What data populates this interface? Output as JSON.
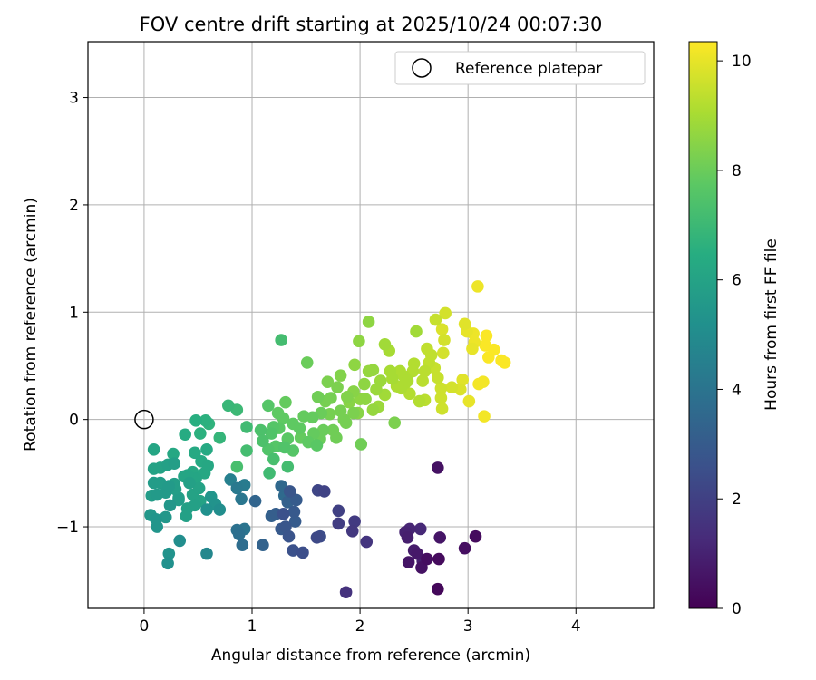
{
  "chart_data": {
    "type": "scatter",
    "title": "FOV centre drift starting at 2025/10/24 00:07:30",
    "xlabel": "Angular distance from reference (arcmin)",
    "ylabel": "Rotation from reference (arcmin)",
    "xlim": [
      -0.52,
      4.72
    ],
    "ylim": [
      -1.76,
      3.52
    ],
    "xticks": [
      "0",
      "1",
      "2",
      "3",
      "4"
    ],
    "yticks": [
      "−1",
      "0",
      "1",
      "2",
      "3"
    ],
    "xtick_values": [
      0,
      1,
      2,
      3,
      4
    ],
    "ytick_values": [
      -1,
      0,
      1,
      2,
      3
    ],
    "grid": true,
    "legend": {
      "position": "top-right",
      "label": "Reference platepar"
    },
    "reference": {
      "x": 0,
      "y": 0
    },
    "colorbar": {
      "label": "Hours from first FF file",
      "colormap": "viridis",
      "range": [
        0,
        10.35
      ],
      "ticks": [
        "0",
        "2",
        "4",
        "6",
        "8",
        "10"
      ],
      "tick_values": [
        0,
        2,
        4,
        6,
        8,
        10
      ]
    },
    "points": [
      {
        "x": 2.72,
        "y": -1.58,
        "h": 0.2
      },
      {
        "x": 2.73,
        "y": -1.3,
        "h": 0.3
      },
      {
        "x": 2.62,
        "y": -1.3,
        "h": 0.4
      },
      {
        "x": 2.57,
        "y": -1.38,
        "h": 0.5
      },
      {
        "x": 2.45,
        "y": -1.33,
        "h": 0.6
      },
      {
        "x": 2.53,
        "y": -1.25,
        "h": 0.7
      },
      {
        "x": 2.5,
        "y": -1.22,
        "h": 0.8
      },
      {
        "x": 2.44,
        "y": -1.1,
        "h": 0.9
      },
      {
        "x": 2.42,
        "y": -1.05,
        "h": 1.0
      },
      {
        "x": 2.46,
        "y": -1.02,
        "h": 1.1
      },
      {
        "x": 2.56,
        "y": -1.02,
        "h": 1.2
      },
      {
        "x": 2.74,
        "y": -1.1,
        "h": 0.6
      },
      {
        "x": 2.97,
        "y": -1.2,
        "h": 0.4
      },
      {
        "x": 3.07,
        "y": -1.09,
        "h": 0.3
      },
      {
        "x": 2.72,
        "y": -0.45,
        "h": 0.5
      },
      {
        "x": 2.58,
        "y": -1.32,
        "h": 0.9
      },
      {
        "x": 1.87,
        "y": -1.61,
        "h": 1.5
      },
      {
        "x": 2.06,
        "y": -1.14,
        "h": 1.6
      },
      {
        "x": 1.93,
        "y": -1.04,
        "h": 1.7
      },
      {
        "x": 1.95,
        "y": -0.95,
        "h": 1.8
      },
      {
        "x": 1.8,
        "y": -0.97,
        "h": 1.9
      },
      {
        "x": 1.8,
        "y": -0.85,
        "h": 2.0
      },
      {
        "x": 1.67,
        "y": -0.67,
        "h": 2.1
      },
      {
        "x": 1.61,
        "y": -0.66,
        "h": 2.2
      },
      {
        "x": 1.6,
        "y": -1.1,
        "h": 2.3
      },
      {
        "x": 1.63,
        "y": -1.09,
        "h": 2.4
      },
      {
        "x": 1.47,
        "y": -1.24,
        "h": 2.5
      },
      {
        "x": 1.38,
        "y": -1.22,
        "h": 2.6
      },
      {
        "x": 1.34,
        "y": -1.09,
        "h": 2.7
      },
      {
        "x": 1.31,
        "y": -1.0,
        "h": 2.8
      },
      {
        "x": 1.27,
        "y": -1.02,
        "h": 2.9
      },
      {
        "x": 1.4,
        "y": -0.95,
        "h": 3.0
      },
      {
        "x": 1.22,
        "y": -0.88,
        "h": 3.1
      },
      {
        "x": 1.18,
        "y": -0.9,
        "h": 3.2
      },
      {
        "x": 1.1,
        "y": -1.17,
        "h": 3.3
      },
      {
        "x": 1.03,
        "y": -0.76,
        "h": 3.4
      },
      {
        "x": 1.27,
        "y": -0.62,
        "h": 3.5
      },
      {
        "x": 1.3,
        "y": -0.71,
        "h": 3.6
      },
      {
        "x": 1.35,
        "y": -0.67,
        "h": 2.8
      },
      {
        "x": 1.41,
        "y": -0.75,
        "h": 3.0
      },
      {
        "x": 1.33,
        "y": -0.77,
        "h": 3.2
      },
      {
        "x": 1.29,
        "y": -0.88,
        "h": 2.6
      },
      {
        "x": 1.39,
        "y": -0.86,
        "h": 2.9
      },
      {
        "x": 0.91,
        "y": -1.17,
        "h": 3.7
      },
      {
        "x": 0.88,
        "y": -1.07,
        "h": 3.8
      },
      {
        "x": 0.86,
        "y": -1.03,
        "h": 3.9
      },
      {
        "x": 0.93,
        "y": -1.02,
        "h": 4.0
      },
      {
        "x": 0.9,
        "y": -0.74,
        "h": 4.1
      },
      {
        "x": 0.86,
        "y": -0.64,
        "h": 4.2
      },
      {
        "x": 0.93,
        "y": -0.61,
        "h": 4.3
      },
      {
        "x": 0.8,
        "y": -0.56,
        "h": 4.5
      },
      {
        "x": 0.58,
        "y": -1.25,
        "h": 4.8
      },
      {
        "x": 0.33,
        "y": -1.13,
        "h": 5.1
      },
      {
        "x": 0.22,
        "y": -1.34,
        "h": 5.2
      },
      {
        "x": 0.23,
        "y": -1.25,
        "h": 5.3
      },
      {
        "x": 0.12,
        "y": -1.0,
        "h": 5.4
      },
      {
        "x": 0.11,
        "y": -0.93,
        "h": 5.4
      },
      {
        "x": 0.06,
        "y": -0.89,
        "h": 5.5
      },
      {
        "x": 0.2,
        "y": -0.91,
        "h": 5.5
      },
      {
        "x": 0.24,
        "y": -0.8,
        "h": 5.5
      },
      {
        "x": 0.2,
        "y": -0.68,
        "h": 5.6
      },
      {
        "x": 0.12,
        "y": -0.7,
        "h": 5.6
      },
      {
        "x": 0.07,
        "y": -0.71,
        "h": 5.7
      },
      {
        "x": 0.09,
        "y": -0.59,
        "h": 5.7
      },
      {
        "x": 0.15,
        "y": -0.59,
        "h": 5.7
      },
      {
        "x": 0.28,
        "y": -0.6,
        "h": 5.8
      },
      {
        "x": 0.32,
        "y": -0.73,
        "h": 5.8
      },
      {
        "x": 0.29,
        "y": -0.65,
        "h": 5.8
      },
      {
        "x": 0.39,
        "y": -0.9,
        "h": 5.9
      },
      {
        "x": 0.4,
        "y": -0.83,
        "h": 5.9
      },
      {
        "x": 0.47,
        "y": -0.8,
        "h": 5.9
      },
      {
        "x": 0.52,
        "y": -0.76,
        "h": 6.0
      },
      {
        "x": 0.45,
        "y": -0.7,
        "h": 6.0
      },
      {
        "x": 0.51,
        "y": -0.64,
        "h": 6.0
      },
      {
        "x": 0.48,
        "y": -0.55,
        "h": 6.1
      },
      {
        "x": 0.4,
        "y": -0.52,
        "h": 6.1
      },
      {
        "x": 0.37,
        "y": -0.53,
        "h": 6.1
      },
      {
        "x": 0.45,
        "y": -0.49,
        "h": 6.2
      },
      {
        "x": 0.56,
        "y": -0.5,
        "h": 6.2
      },
      {
        "x": 0.59,
        "y": -0.43,
        "h": 6.2
      },
      {
        "x": 0.53,
        "y": -0.39,
        "h": 6.3
      },
      {
        "x": 0.47,
        "y": -0.31,
        "h": 6.3
      },
      {
        "x": 0.58,
        "y": -0.28,
        "h": 6.3
      },
      {
        "x": 0.62,
        "y": -0.72,
        "h": 5.4
      },
      {
        "x": 0.66,
        "y": -0.79,
        "h": 5.3
      },
      {
        "x": 0.58,
        "y": -0.84,
        "h": 5.2
      },
      {
        "x": 0.7,
        "y": -0.84,
        "h": 5.1
      },
      {
        "x": 0.28,
        "y": -0.41,
        "h": 5.8
      },
      {
        "x": 0.22,
        "y": -0.42,
        "h": 5.9
      },
      {
        "x": 0.15,
        "y": -0.45,
        "h": 6.0
      },
      {
        "x": 0.09,
        "y": -0.46,
        "h": 6.0
      },
      {
        "x": 0.09,
        "y": -0.28,
        "h": 6.1
      },
      {
        "x": 0.27,
        "y": -0.32,
        "h": 6.2
      },
      {
        "x": 0.38,
        "y": -0.14,
        "h": 6.4
      },
      {
        "x": 0.48,
        "y": -0.01,
        "h": 6.5
      },
      {
        "x": 0.52,
        "y": -0.13,
        "h": 6.6
      },
      {
        "x": 0.57,
        "y": -0.01,
        "h": 6.6
      },
      {
        "x": 0.6,
        "y": -0.04,
        "h": 6.7
      },
      {
        "x": 0.7,
        "y": -0.17,
        "h": 6.8
      },
      {
        "x": 0.78,
        "y": 0.13,
        "h": 6.9
      },
      {
        "x": 0.86,
        "y": 0.09,
        "h": 7.0
      },
      {
        "x": 0.95,
        "y": -0.07,
        "h": 7.1
      },
      {
        "x": 0.95,
        "y": -0.29,
        "h": 7.2
      },
      {
        "x": 0.86,
        "y": -0.44,
        "h": 7.3
      },
      {
        "x": 0.23,
        "y": -0.62,
        "h": 5.6
      },
      {
        "x": 0.32,
        "y": -0.75,
        "h": 5.7
      },
      {
        "x": 0.42,
        "y": -0.59,
        "h": 5.9
      },
      {
        "x": 1.08,
        "y": -0.1,
        "h": 7.4
      },
      {
        "x": 1.1,
        "y": -0.2,
        "h": 7.4
      },
      {
        "x": 1.15,
        "y": -0.28,
        "h": 7.5
      },
      {
        "x": 1.18,
        "y": -0.13,
        "h": 7.5
      },
      {
        "x": 1.2,
        "y": -0.07,
        "h": 7.6
      },
      {
        "x": 1.22,
        "y": -0.25,
        "h": 7.6
      },
      {
        "x": 1.16,
        "y": -0.5,
        "h": 7.1
      },
      {
        "x": 1.2,
        "y": -0.37,
        "h": 7.3
      },
      {
        "x": 1.33,
        "y": -0.44,
        "h": 7.2
      },
      {
        "x": 1.37,
        "y": -0.74,
        "h": 6.7
      },
      {
        "x": 1.38,
        "y": -0.29,
        "h": 7.6
      },
      {
        "x": 1.3,
        "y": -0.26,
        "h": 7.5
      },
      {
        "x": 1.33,
        "y": -0.18,
        "h": 7.7
      },
      {
        "x": 1.29,
        "y": 0.01,
        "h": 7.8
      },
      {
        "x": 1.25,
        "y": -0.08,
        "h": 7.7
      },
      {
        "x": 1.38,
        "y": -0.04,
        "h": 7.8
      },
      {
        "x": 1.45,
        "y": -0.17,
        "h": 7.9
      },
      {
        "x": 1.52,
        "y": -0.21,
        "h": 7.8
      },
      {
        "x": 1.57,
        "y": -0.13,
        "h": 7.9
      },
      {
        "x": 1.6,
        "y": -0.24,
        "h": 7.7
      },
      {
        "x": 1.63,
        "y": -0.18,
        "h": 8.0
      },
      {
        "x": 1.66,
        "y": -0.1,
        "h": 8.0
      },
      {
        "x": 1.75,
        "y": -0.1,
        "h": 8.1
      },
      {
        "x": 1.78,
        "y": -0.17,
        "h": 8.1
      },
      {
        "x": 1.85,
        "y": 0.0,
        "h": 8.2
      },
      {
        "x": 1.87,
        "y": -0.03,
        "h": 8.2
      },
      {
        "x": 1.94,
        "y": 0.06,
        "h": 8.3
      },
      {
        "x": 2.01,
        "y": -0.23,
        "h": 8.1
      },
      {
        "x": 1.31,
        "y": 0.16,
        "h": 7.9
      },
      {
        "x": 1.24,
        "y": 0.06,
        "h": 7.8
      },
      {
        "x": 1.15,
        "y": 0.13,
        "h": 7.6
      },
      {
        "x": 1.27,
        "y": 0.74,
        "h": 7.2
      },
      {
        "x": 1.51,
        "y": 0.53,
        "h": 8.0
      },
      {
        "x": 1.61,
        "y": 0.21,
        "h": 8.1
      },
      {
        "x": 1.68,
        "y": 0.17,
        "h": 8.2
      },
      {
        "x": 1.73,
        "y": 0.2,
        "h": 8.2
      },
      {
        "x": 1.7,
        "y": 0.35,
        "h": 8.3
      },
      {
        "x": 1.79,
        "y": 0.3,
        "h": 8.3
      },
      {
        "x": 1.82,
        "y": 0.41,
        "h": 8.4
      },
      {
        "x": 1.88,
        "y": 0.21,
        "h": 8.4
      },
      {
        "x": 1.9,
        "y": 0.16,
        "h": 8.5
      },
      {
        "x": 1.94,
        "y": 0.26,
        "h": 8.5
      },
      {
        "x": 2.0,
        "y": 0.19,
        "h": 8.6
      },
      {
        "x": 2.05,
        "y": 0.19,
        "h": 8.6
      },
      {
        "x": 2.08,
        "y": 0.45,
        "h": 8.7
      },
      {
        "x": 2.12,
        "y": 0.46,
        "h": 8.7
      },
      {
        "x": 1.99,
        "y": 0.73,
        "h": 8.6
      },
      {
        "x": 2.08,
        "y": 0.91,
        "h": 8.6
      },
      {
        "x": 1.95,
        "y": 0.51,
        "h": 8.6
      },
      {
        "x": 2.15,
        "y": 0.28,
        "h": 8.8
      },
      {
        "x": 2.19,
        "y": 0.36,
        "h": 8.8
      },
      {
        "x": 2.12,
        "y": 0.09,
        "h": 8.7
      },
      {
        "x": 2.17,
        "y": 0.12,
        "h": 8.8
      },
      {
        "x": 2.23,
        "y": 0.23,
        "h": 8.9
      },
      {
        "x": 2.23,
        "y": 0.7,
        "h": 8.9
      },
      {
        "x": 2.27,
        "y": 0.64,
        "h": 9.0
      },
      {
        "x": 2.28,
        "y": 0.45,
        "h": 9.0
      },
      {
        "x": 2.3,
        "y": 0.38,
        "h": 9.0
      },
      {
        "x": 2.34,
        "y": 0.31,
        "h": 9.1
      },
      {
        "x": 2.37,
        "y": 0.45,
        "h": 9.1
      },
      {
        "x": 2.32,
        "y": -0.03,
        "h": 8.3
      },
      {
        "x": 2.38,
        "y": 0.29,
        "h": 9.1
      },
      {
        "x": 2.42,
        "y": 0.34,
        "h": 9.1
      },
      {
        "x": 2.46,
        "y": 0.24,
        "h": 9.2
      },
      {
        "x": 2.5,
        "y": 0.52,
        "h": 9.2
      },
      {
        "x": 2.52,
        "y": 0.82,
        "h": 8.9
      },
      {
        "x": 2.55,
        "y": 0.17,
        "h": 9.2
      },
      {
        "x": 2.58,
        "y": 0.36,
        "h": 9.3
      },
      {
        "x": 2.6,
        "y": 0.18,
        "h": 9.3
      },
      {
        "x": 2.62,
        "y": 0.66,
        "h": 9.4
      },
      {
        "x": 2.64,
        "y": 0.53,
        "h": 9.4
      },
      {
        "x": 2.66,
        "y": 0.6,
        "h": 9.4
      },
      {
        "x": 2.69,
        "y": 0.48,
        "h": 9.5
      },
      {
        "x": 2.7,
        "y": 0.93,
        "h": 9.5
      },
      {
        "x": 2.72,
        "y": 0.39,
        "h": 9.5
      },
      {
        "x": 2.75,
        "y": 0.29,
        "h": 9.6
      },
      {
        "x": 2.75,
        "y": 0.2,
        "h": 9.6
      },
      {
        "x": 2.76,
        "y": 0.1,
        "h": 9.6
      },
      {
        "x": 2.77,
        "y": 0.62,
        "h": 9.7
      },
      {
        "x": 2.78,
        "y": 0.74,
        "h": 9.7
      },
      {
        "x": 2.79,
        "y": 0.99,
        "h": 9.7
      },
      {
        "x": 2.76,
        "y": 0.84,
        "h": 9.8
      },
      {
        "x": 2.93,
        "y": 0.28,
        "h": 9.8
      },
      {
        "x": 2.95,
        "y": 0.37,
        "h": 9.9
      },
      {
        "x": 2.97,
        "y": 0.89,
        "h": 9.9
      },
      {
        "x": 2.99,
        "y": 0.82,
        "h": 10.0
      },
      {
        "x": 3.01,
        "y": 0.17,
        "h": 10.0
      },
      {
        "x": 3.04,
        "y": 0.66,
        "h": 10.0
      },
      {
        "x": 3.06,
        "y": 0.72,
        "h": 10.1
      },
      {
        "x": 3.09,
        "y": 1.24,
        "h": 10.1
      },
      {
        "x": 3.1,
        "y": 0.33,
        "h": 10.2
      },
      {
        "x": 3.14,
        "y": 0.35,
        "h": 10.2
      },
      {
        "x": 3.15,
        "y": 0.03,
        "h": 10.2
      },
      {
        "x": 3.16,
        "y": 0.69,
        "h": 10.3
      },
      {
        "x": 3.17,
        "y": 0.78,
        "h": 10.3
      },
      {
        "x": 3.19,
        "y": 0.58,
        "h": 10.3
      },
      {
        "x": 3.24,
        "y": 0.65,
        "h": 10.3
      },
      {
        "x": 3.31,
        "y": 0.55,
        "h": 10.3
      },
      {
        "x": 3.34,
        "y": 0.53,
        "h": 10.3
      },
      {
        "x": 3.05,
        "y": 0.8,
        "h": 10.1
      },
      {
        "x": 2.41,
        "y": 0.4,
        "h": 9.1
      },
      {
        "x": 2.49,
        "y": 0.45,
        "h": 9.2
      },
      {
        "x": 2.6,
        "y": 0.45,
        "h": 9.3
      },
      {
        "x": 2.44,
        "y": 0.36,
        "h": 9.1
      },
      {
        "x": 2.85,
        "y": 0.3,
        "h": 9.7
      },
      {
        "x": 1.72,
        "y": 0.05,
        "h": 8.2
      },
      {
        "x": 1.82,
        "y": 0.08,
        "h": 8.2
      },
      {
        "x": 1.64,
        "y": 0.06,
        "h": 8.0
      },
      {
        "x": 1.56,
        "y": 0.02,
        "h": 7.9
      },
      {
        "x": 1.48,
        "y": 0.03,
        "h": 7.9
      },
      {
        "x": 1.44,
        "y": -0.08,
        "h": 7.8
      },
      {
        "x": 1.98,
        "y": 0.06,
        "h": 8.5
      },
      {
        "x": 2.04,
        "y": 0.33,
        "h": 8.6
      }
    ]
  }
}
